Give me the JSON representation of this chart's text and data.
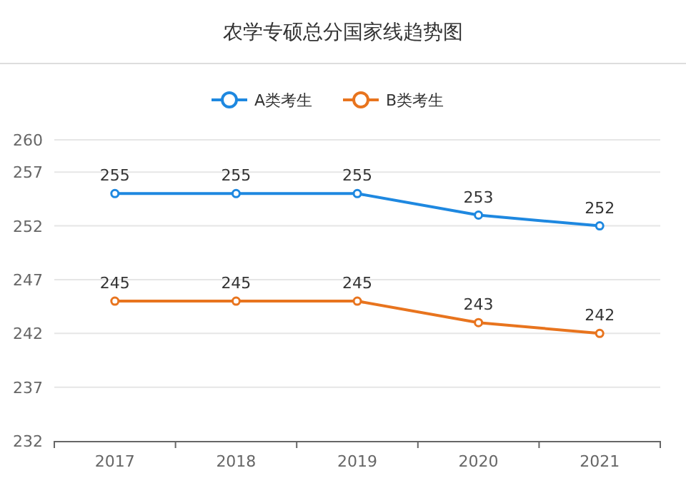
{
  "chart_data": {
    "type": "line",
    "title": "农学专硕总分国家线趋势图",
    "categories": [
      "2017",
      "2018",
      "2019",
      "2020",
      "2021"
    ],
    "series": [
      {
        "name": "A类考生",
        "color": "#1e88e0",
        "values": [
          255,
          255,
          255,
          253,
          252
        ]
      },
      {
        "name": "B类考生",
        "color": "#e8741e",
        "values": [
          245,
          245,
          245,
          243,
          242
        ]
      }
    ],
    "ylim": [
      232,
      260
    ],
    "yticks": [
      232,
      237,
      242,
      247,
      252,
      257,
      260
    ],
    "grid": "y",
    "legend": "top",
    "marker": "circle",
    "data_labels": true
  }
}
